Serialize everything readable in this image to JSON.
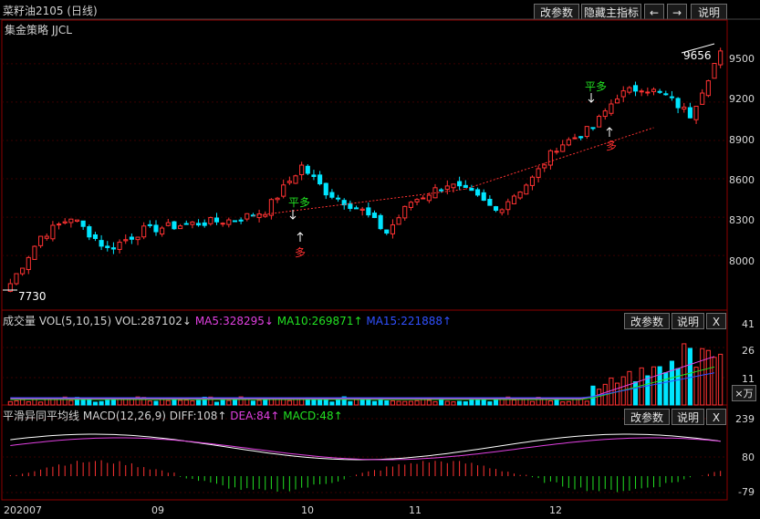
{
  "title": "菜籽油2105 (日线)",
  "toolbar": {
    "modify_params": "改参数",
    "hide_indicators": "隐藏主指标",
    "prev": "←",
    "next": "→",
    "help": "说明"
  },
  "strategy_label": "集金策略 JJCL",
  "price_panel": {
    "high_label": "9656",
    "low_label": "7730",
    "y_ticks": [
      "9500",
      "9200",
      "8900",
      "8600",
      "8300",
      "8000"
    ],
    "signals": [
      {
        "text": "平多",
        "color": "#22e022"
      },
      {
        "text": "多",
        "color": "#ff3030"
      },
      {
        "text": "平多",
        "color": "#22e022"
      },
      {
        "text": "多",
        "color": "#ff3030"
      }
    ]
  },
  "volume_panel": {
    "title": "成交量",
    "indicator": "VOL(5,10,15) VOL:287102↓",
    "ma5": "MA5:328295↓",
    "ma10": "MA10:269871↑",
    "ma15": "MA15:221888↑",
    "ma5_color": "#e040e0",
    "ma10_color": "#22e022",
    "ma15_color": "#3050ff",
    "btn_params": "改参数",
    "btn_help": "说明",
    "btn_close": "X",
    "y_ticks": [
      "41",
      "26",
      "11"
    ],
    "unit_label": "×万"
  },
  "macd_panel": {
    "title": "平滑异同平均线",
    "indicator": "MACD(12,26,9) DIFF:108↑",
    "dea": "DEA:84↑",
    "macd": "MACD:48↑",
    "dea_color": "#e040e0",
    "macd_color": "#22e022",
    "btn_params": "改参数",
    "btn_help": "说明",
    "btn_close": "X",
    "y_ticks": [
      "239",
      "80",
      "-79"
    ]
  },
  "x_axis": {
    "labels": [
      "202007",
      "09",
      "10",
      "11",
      "12"
    ]
  },
  "colors": {
    "up": "#ff3232",
    "down": "#00e5ff",
    "grid": "#3a0000",
    "axis": "#8b0000"
  },
  "chart_data": {
    "type": "candlestick",
    "title": "菜籽油2105 (日线)",
    "price_range": [
      7730,
      9656
    ],
    "ohlc_start_end": {
      "first_close": 7780,
      "last_close": 9600
    },
    "macd": {
      "DIFF": 108,
      "DEA": 84,
      "MACD": 48
    },
    "volume": {
      "VOL": 287102,
      "MA5": 328295,
      "MA10": 269871,
      "MA15": 221888
    }
  }
}
